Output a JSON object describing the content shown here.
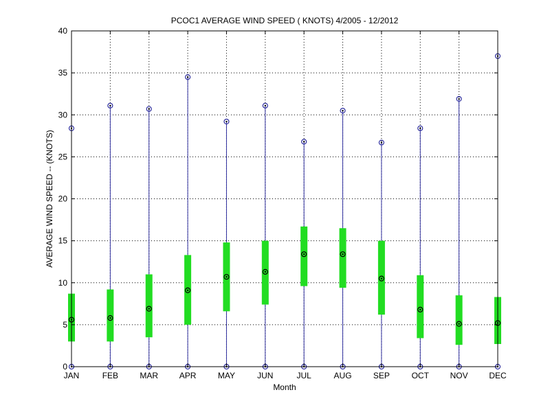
{
  "chart_data": {
    "type": "box",
    "title": "PCOC1  AVERAGE WIND SPEED ( KNOTS) 4/2005 - 12/2012",
    "xlabel": "Month",
    "ylabel": "AVERAGE WIND SPEED -- (KNOTS)",
    "ylim": [
      0,
      40
    ],
    "yticks": [
      0,
      5,
      10,
      15,
      20,
      25,
      30,
      35,
      40
    ],
    "grid": true,
    "categories": [
      "JAN",
      "FEB",
      "MAR",
      "APR",
      "MAY",
      "JUN",
      "JUL",
      "AUG",
      "SEP",
      "OCT",
      "NOV",
      "DEC"
    ],
    "series": [
      {
        "min": [
          0,
          0,
          0,
          0,
          0,
          0,
          0,
          0,
          0,
          0,
          0,
          0
        ],
        "q1": [
          3.0,
          3.0,
          3.5,
          5.0,
          6.6,
          7.4,
          9.6,
          9.4,
          6.2,
          3.4,
          2.6,
          2.7
        ],
        "median": [
          5.6,
          5.8,
          6.9,
          9.1,
          10.7,
          11.3,
          13.4,
          13.4,
          10.5,
          6.8,
          5.1,
          5.2
        ],
        "q3": [
          8.7,
          9.2,
          11.0,
          13.3,
          14.8,
          15.0,
          16.7,
          16.5,
          15.0,
          10.9,
          8.5,
          8.3
        ],
        "max": [
          28.4,
          31.1,
          30.7,
          34.5,
          29.2,
          31.1,
          26.8,
          30.5,
          26.7,
          28.4,
          31.9,
          37.0
        ]
      }
    ],
    "colors": {
      "whisker": "#2e2e9e",
      "box": "#22dd22",
      "marker": "#000000",
      "grid": "#000000"
    }
  }
}
